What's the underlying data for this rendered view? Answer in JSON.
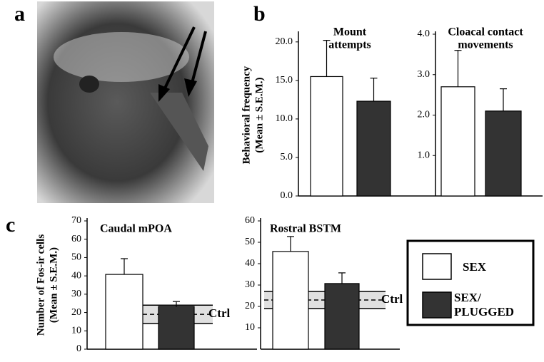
{
  "panel_labels": [
    "a",
    "b",
    "c"
  ],
  "legend": {
    "entries": [
      [
        "SEX"
      ],
      [
        "SEX/",
        "PLUGGED"
      ]
    ]
  },
  "chart_data": [
    {
      "type": "bar",
      "title": [
        "Mount",
        "attempts"
      ],
      "y_label": [
        "Behavioral frequency",
        "(Mean ± S.E.M.)"
      ],
      "ylim": [
        0,
        21
      ],
      "yticks": [
        {
          "value": 0,
          "label": "0.0"
        },
        {
          "value": 5,
          "label": "5.0"
        },
        {
          "value": 10,
          "label": "10.0"
        },
        {
          "value": 15,
          "label": "15.0"
        },
        {
          "value": 20,
          "label": "20.0"
        }
      ],
      "series": [
        {
          "name": "SEX",
          "color": "#ffffff",
          "values": [
            15.5
          ],
          "errors": [
            4.7
          ]
        },
        {
          "name": "SEX/PLUGGED",
          "color": "#333333",
          "values": [
            12.3
          ],
          "errors": [
            3.0
          ]
        }
      ]
    },
    {
      "type": "bar",
      "title": [
        "Cloacal contact",
        "movements"
      ],
      "ylim": [
        0,
        4
      ],
      "yticks": [
        {
          "value": 1,
          "label": "1.0"
        },
        {
          "value": 2,
          "label": "2.0"
        },
        {
          "value": 3,
          "label": "3.0"
        },
        {
          "value": 4,
          "label": "4.0"
        }
      ],
      "series": [
        {
          "name": "SEX",
          "color": "#ffffff",
          "values": [
            2.7
          ],
          "errors": [
            0.9
          ]
        },
        {
          "name": "SEX/PLUGGED",
          "color": "#333333",
          "values": [
            2.1
          ],
          "errors": [
            0.55
          ]
        }
      ]
    },
    {
      "type": "bar",
      "title": [
        "Caudal mPOA"
      ],
      "y_label": [
        "Number of Fos-ir cells",
        "(Mean ± S.E.M.)"
      ],
      "ylim": [
        0,
        70
      ],
      "yticks": [
        0,
        10,
        20,
        30,
        40,
        50,
        60,
        70
      ],
      "control": {
        "label": "Ctrl",
        "mean": 19,
        "low": 14,
        "high": 24
      },
      "series": [
        {
          "name": "SEX",
          "color": "#ffffff",
          "values": [
            40.8
          ],
          "errors": [
            8.6
          ]
        },
        {
          "name": "SEX/PLUGGED",
          "color": "#333333",
          "values": [
            23.3
          ],
          "errors": [
            2.7
          ]
        }
      ]
    },
    {
      "type": "bar",
      "title": [
        "Rostral BSTM"
      ],
      "ylim": [
        0,
        60
      ],
      "yticks": [
        10,
        20,
        30,
        40,
        50,
        60
      ],
      "control": {
        "label": "Ctrl",
        "mean": 23,
        "low": 19,
        "high": 27
      },
      "series": [
        {
          "name": "SEX",
          "color": "#ffffff",
          "values": [
            45.7
          ],
          "errors": [
            7
          ]
        },
        {
          "name": "SEX/PLUGGED",
          "color": "#333333",
          "values": [
            30.7
          ],
          "errors": [
            5
          ]
        }
      ]
    }
  ]
}
